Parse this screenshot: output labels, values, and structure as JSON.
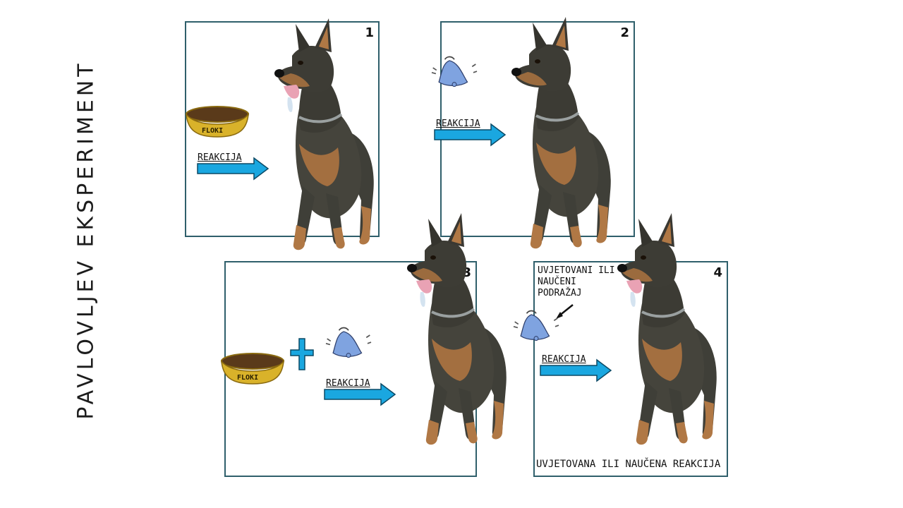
{
  "title": "PAVLOVLJEV EKSPERIMENT",
  "bowl_label": "FLOKI",
  "arrow_label": "REAKCIJA",
  "panels": [
    {
      "number": "1"
    },
    {
      "number": "2"
    },
    {
      "number": "3"
    },
    {
      "number": "4"
    }
  ],
  "panel4": {
    "stimulus_note_line1": "UVJETOVANI ILI",
    "stimulus_note_line2": "NAUČENI",
    "stimulus_note_line3": "PODRAŽAJ",
    "response_note": "UVJETOVANA ILI NAUČENA REAKCIJA"
  },
  "colors": {
    "panel_border": "#2f5f6b",
    "arrow": "#1aa7e0",
    "bell": "#7fa3e0",
    "bowl": "#d9b22a",
    "dog_coat": "#3f3f38",
    "dog_tan": "#b07845"
  }
}
